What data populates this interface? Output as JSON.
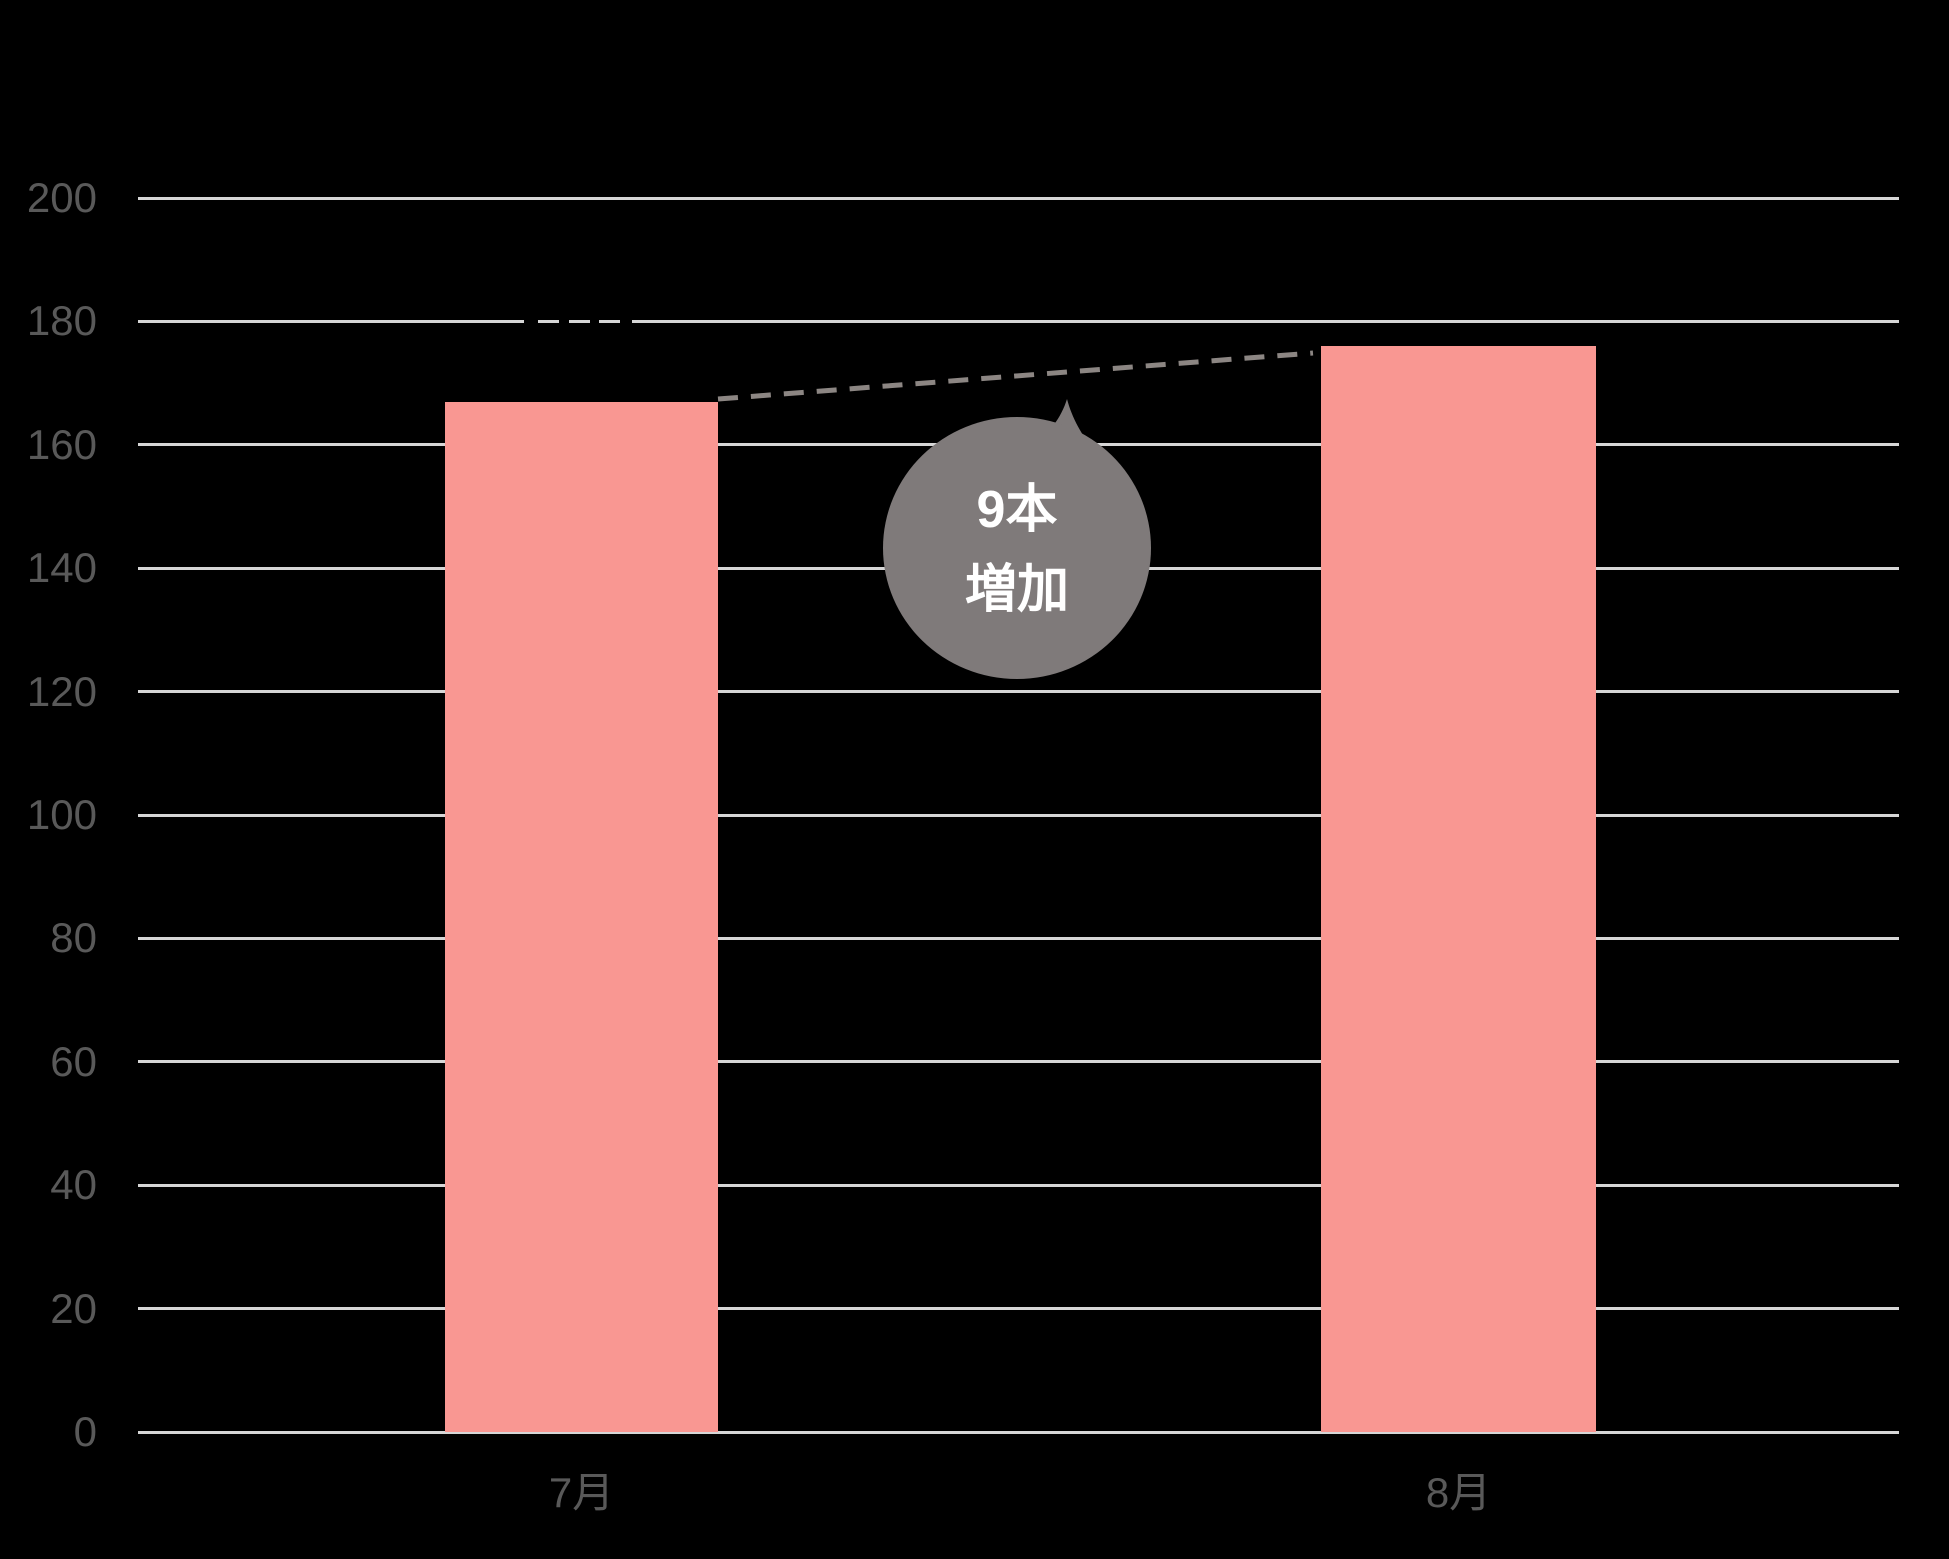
{
  "canvas": {
    "background": "#000000"
  },
  "chart_data": {
    "type": "bar",
    "title": "",
    "categories": [
      "7月",
      "8月"
    ],
    "values": [
      167,
      176
    ],
    "bar_color": "#F99792",
    "ylim": [
      0,
      200
    ],
    "yticks": [
      0,
      20,
      40,
      60,
      80,
      100,
      120,
      140,
      160,
      180,
      200
    ],
    "grid": true,
    "legend": false,
    "gridline_color": "#D6D6D6",
    "axis_label_color": "#595959",
    "annotation": {
      "bubble_line1": "9本",
      "bubble_line2": "増加",
      "bubble_color": "#7F7A7A",
      "bubble_text_color": "#FFFFFF",
      "connector_style": "dashed",
      "connector_color": "#8C8683"
    },
    "artifacts": {
      "broken_gridline_at_value": 180
    }
  }
}
